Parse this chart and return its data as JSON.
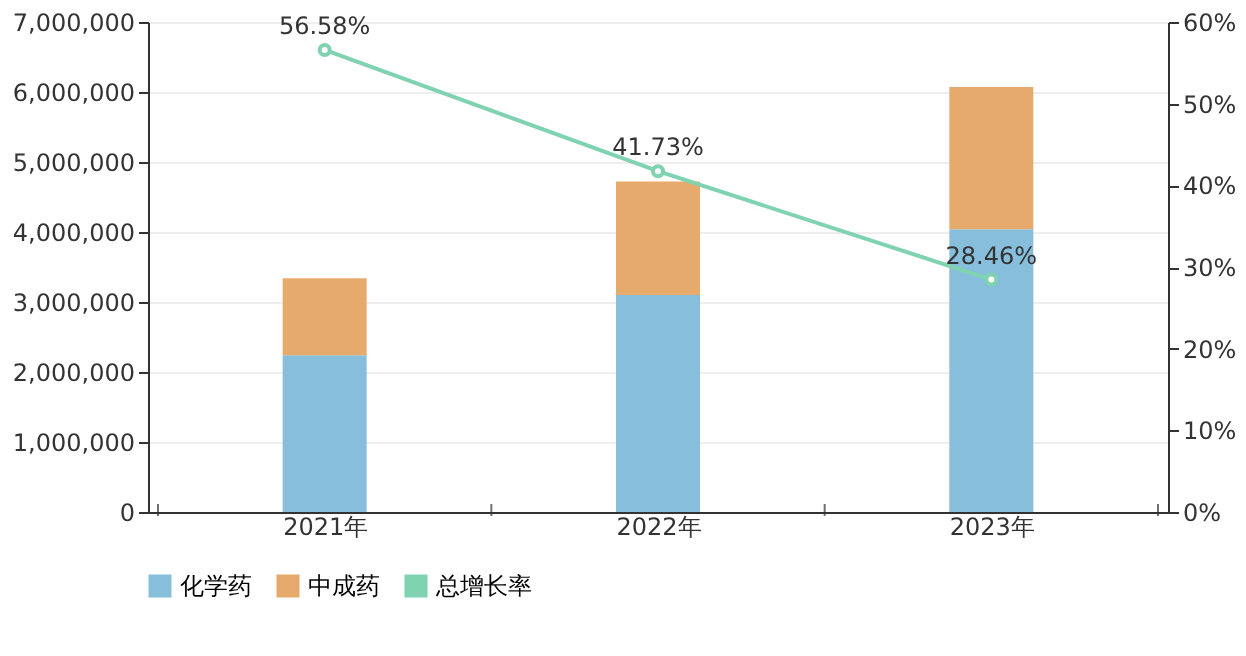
{
  "chart_data": {
    "type": "bar",
    "stacked": true,
    "categories": [
      "2021年",
      "2022年",
      "2023年"
    ],
    "series": [
      {
        "name": "化学药",
        "color": "#86bedc",
        "values": [
          2240000,
          3100000,
          4040000
        ]
      },
      {
        "name": "中成药",
        "color": "#e7aa6d",
        "values": [
          1100000,
          1620000,
          2030000
        ]
      },
      {
        "name": "总增长率",
        "type": "line",
        "axis": "y2",
        "color": "#7fd3b0",
        "values": [
          56.58,
          41.73,
          28.46
        ],
        "value_labels": [
          "56.58%",
          "41.73%",
          "28.46%"
        ],
        "marker": "circle"
      }
    ],
    "ylim": [
      0,
      7000000
    ],
    "yticks": [
      0,
      {
        "value": 1000000,
        "label": "1,000,000"
      },
      {
        "value": 2000000,
        "label": "2,000,000"
      },
      {
        "value": 3000000,
        "label": "3,000,000"
      },
      {
        "value": 4000000,
        "label": "4,000,000"
      },
      {
        "value": 5000000,
        "label": "5,000,000"
      },
      {
        "value": 6000000,
        "label": "6,000,000"
      },
      {
        "value": 7000000,
        "label": "7,000,000"
      }
    ],
    "y2lim": [
      0,
      60
    ],
    "y2ticks": [
      {
        "value": 0,
        "label": "0%"
      },
      {
        "value": 10,
        "label": "10%"
      },
      {
        "value": 20,
        "label": "20%"
      },
      {
        "value": 30,
        "label": "30%"
      },
      {
        "value": 40,
        "label": "40%"
      },
      {
        "value": 50,
        "label": "50%"
      },
      {
        "value": 60,
        "label": "60%"
      }
    ],
    "grid": "y",
    "legend": "bottom"
  }
}
